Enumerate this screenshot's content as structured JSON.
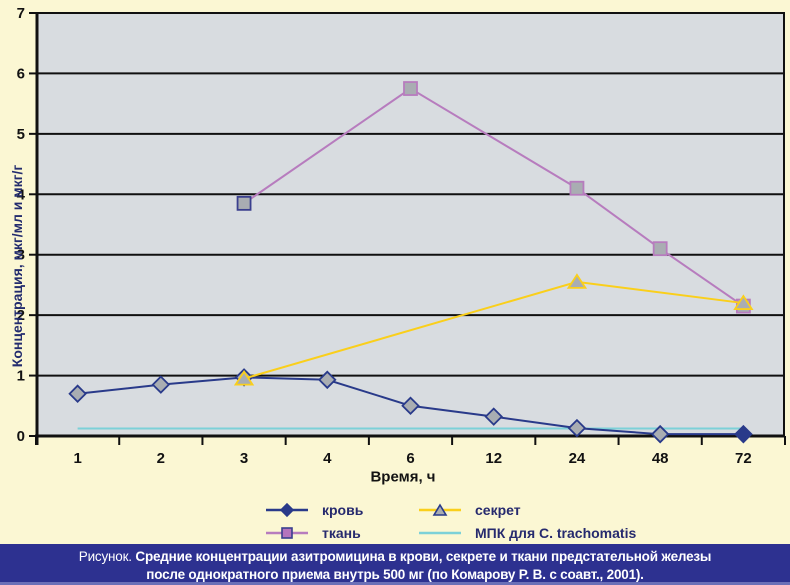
{
  "page_bg": "#FBF7D3",
  "chart_data": {
    "type": "line",
    "title": "",
    "xlabel": "Время, ч",
    "ylabel": "Концентрация, мкг/мл и мкг/г",
    "categories": [
      "1",
      "2",
      "3",
      "4",
      "6",
      "12",
      "24",
      "48",
      "72"
    ],
    "ylim": [
      0,
      7
    ],
    "yticks": [
      0,
      1,
      2,
      3,
      4,
      5,
      6,
      7
    ],
    "grid": true,
    "plot_bg": "#D8DCE0",
    "grid_color": "#101010",
    "series": [
      {
        "name": "МПК для C. trachomatis",
        "color": "#7CD1D8",
        "marker": "none",
        "values": [
          0.125,
          0.125,
          0.125,
          0.125,
          0.125,
          0.125,
          0.125,
          0.125,
          0.125
        ]
      },
      {
        "name": "кровь",
        "color": "#293A8A",
        "marker": "diamond",
        "marker_fill": "#A9ADB2",
        "last_marker_fill": "#293A8A",
        "legend_marker_fill": "#293A8A",
        "legend_marker_stroke": "#293A8A",
        "values": [
          0.7,
          0.85,
          0.97,
          0.93,
          0.5,
          0.32,
          0.13,
          0.03,
          0.03
        ]
      },
      {
        "name": "ткань",
        "color": "#B77CBE",
        "marker": "square",
        "marker_fill": "#A9ADB2",
        "first_marker_stroke": "#3A3F8E",
        "legend_marker_fill": "#B574BD",
        "legend_marker_stroke": "#3A3F8E",
        "values": [
          null,
          null,
          3.85,
          null,
          5.75,
          null,
          4.1,
          3.1,
          2.15
        ]
      },
      {
        "name": "секрет",
        "color": "#FACF1B",
        "marker": "triangle",
        "marker_fill": "#A9ADB2",
        "legend_marker_fill": "#A9ADB2",
        "legend_marker_stroke": "#293A8A",
        "values": [
          null,
          null,
          0.95,
          null,
          null,
          null,
          2.55,
          null,
          2.2
        ]
      }
    ],
    "legend": {
      "position": "bottom",
      "order_note": "two columns: кровь/ткань left, секрет/МПК right"
    }
  },
  "caption": {
    "prefix": "Рисунок.",
    "line1": "Средние концентрации азитромицина в крови, секрете и ткани предстательной железы",
    "line2": "после однократного приема  внутрь 500 мг (по Комарову Р. В. с соавт., 2001)."
  }
}
